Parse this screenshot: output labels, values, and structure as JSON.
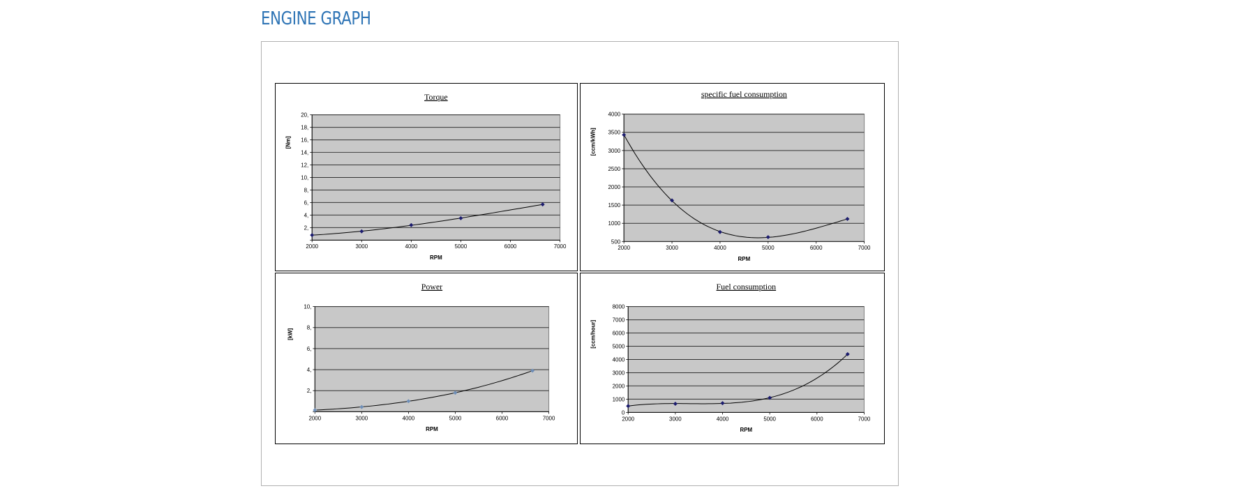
{
  "page": {
    "title": "ENGINE GRAPH"
  },
  "chart_data": [
    {
      "id": "torque",
      "type": "scatter",
      "title": "Torque",
      "xlabel": "RPM",
      "ylabel": "[Nm]",
      "xlim": [
        2000,
        7000
      ],
      "ylim": [
        0,
        20
      ],
      "xticks": [
        "2000",
        "3000",
        "4000",
        "5000",
        "6000",
        "7000"
      ],
      "yticks": [
        "",
        "2,",
        "4,",
        "6,",
        "8,",
        "10,",
        "12,",
        "14,",
        "16,",
        "18,",
        "20,"
      ],
      "grid": true,
      "trendline": true,
      "marker_color": "#1c1c6e",
      "x": [
        2000,
        3000,
        4000,
        5000,
        6650
      ],
      "y": [
        0.8,
        1.4,
        2.4,
        3.5,
        5.7
      ]
    },
    {
      "id": "sfc",
      "type": "scatter",
      "title": "specific fuel consumption",
      "xlabel": "RPM",
      "ylabel": "[ccm/kWh]",
      "xlim": [
        2000,
        7000
      ],
      "ylim": [
        500,
        4000
      ],
      "xticks": [
        "2000",
        "3000",
        "4000",
        "5000",
        "6000",
        "7000"
      ],
      "yticks": [
        "500",
        "1000",
        "1500",
        "2000",
        "2500",
        "3000",
        "3500",
        "4000"
      ],
      "grid": true,
      "trendline": true,
      "marker_color": "#1c1c6e",
      "x": [
        2000,
        3000,
        4000,
        5000,
        6650
      ],
      "y": [
        3430,
        1630,
        760,
        620,
        1120
      ]
    },
    {
      "id": "power",
      "type": "scatter",
      "title": "Power",
      "xlabel": "RPM",
      "ylabel": "[kW]",
      "xlim": [
        2000,
        7000
      ],
      "ylim": [
        0,
        10
      ],
      "xticks": [
        "2000",
        "3000",
        "4000",
        "5000",
        "6000",
        "7000"
      ],
      "yticks": [
        "",
        "2,",
        "4,",
        "6,",
        "8,",
        "10,"
      ],
      "grid": true,
      "trendline": true,
      "marker_color": "#6f8fb8",
      "x": [
        2000,
        3000,
        4000,
        5000,
        6650
      ],
      "y": [
        0.15,
        0.45,
        1.0,
        1.8,
        3.9
      ]
    },
    {
      "id": "fuel",
      "type": "scatter",
      "title": "Fuel consumption",
      "xlabel": "RPM",
      "ylabel": "[ccm/hour]",
      "xlim": [
        2000,
        7000
      ],
      "ylim": [
        0,
        8000
      ],
      "xticks": [
        "2000",
        "3000",
        "4000",
        "5000",
        "6000",
        "7000"
      ],
      "yticks": [
        "0",
        "1000",
        "2000",
        "3000",
        "4000",
        "5000",
        "6000",
        "7000",
        "8000"
      ],
      "grid": true,
      "trendline": true,
      "marker_color": "#1c1c6e",
      "x": [
        2000,
        3000,
        4000,
        5000,
        6650
      ],
      "y": [
        480,
        650,
        700,
        1100,
        4400
      ]
    }
  ]
}
